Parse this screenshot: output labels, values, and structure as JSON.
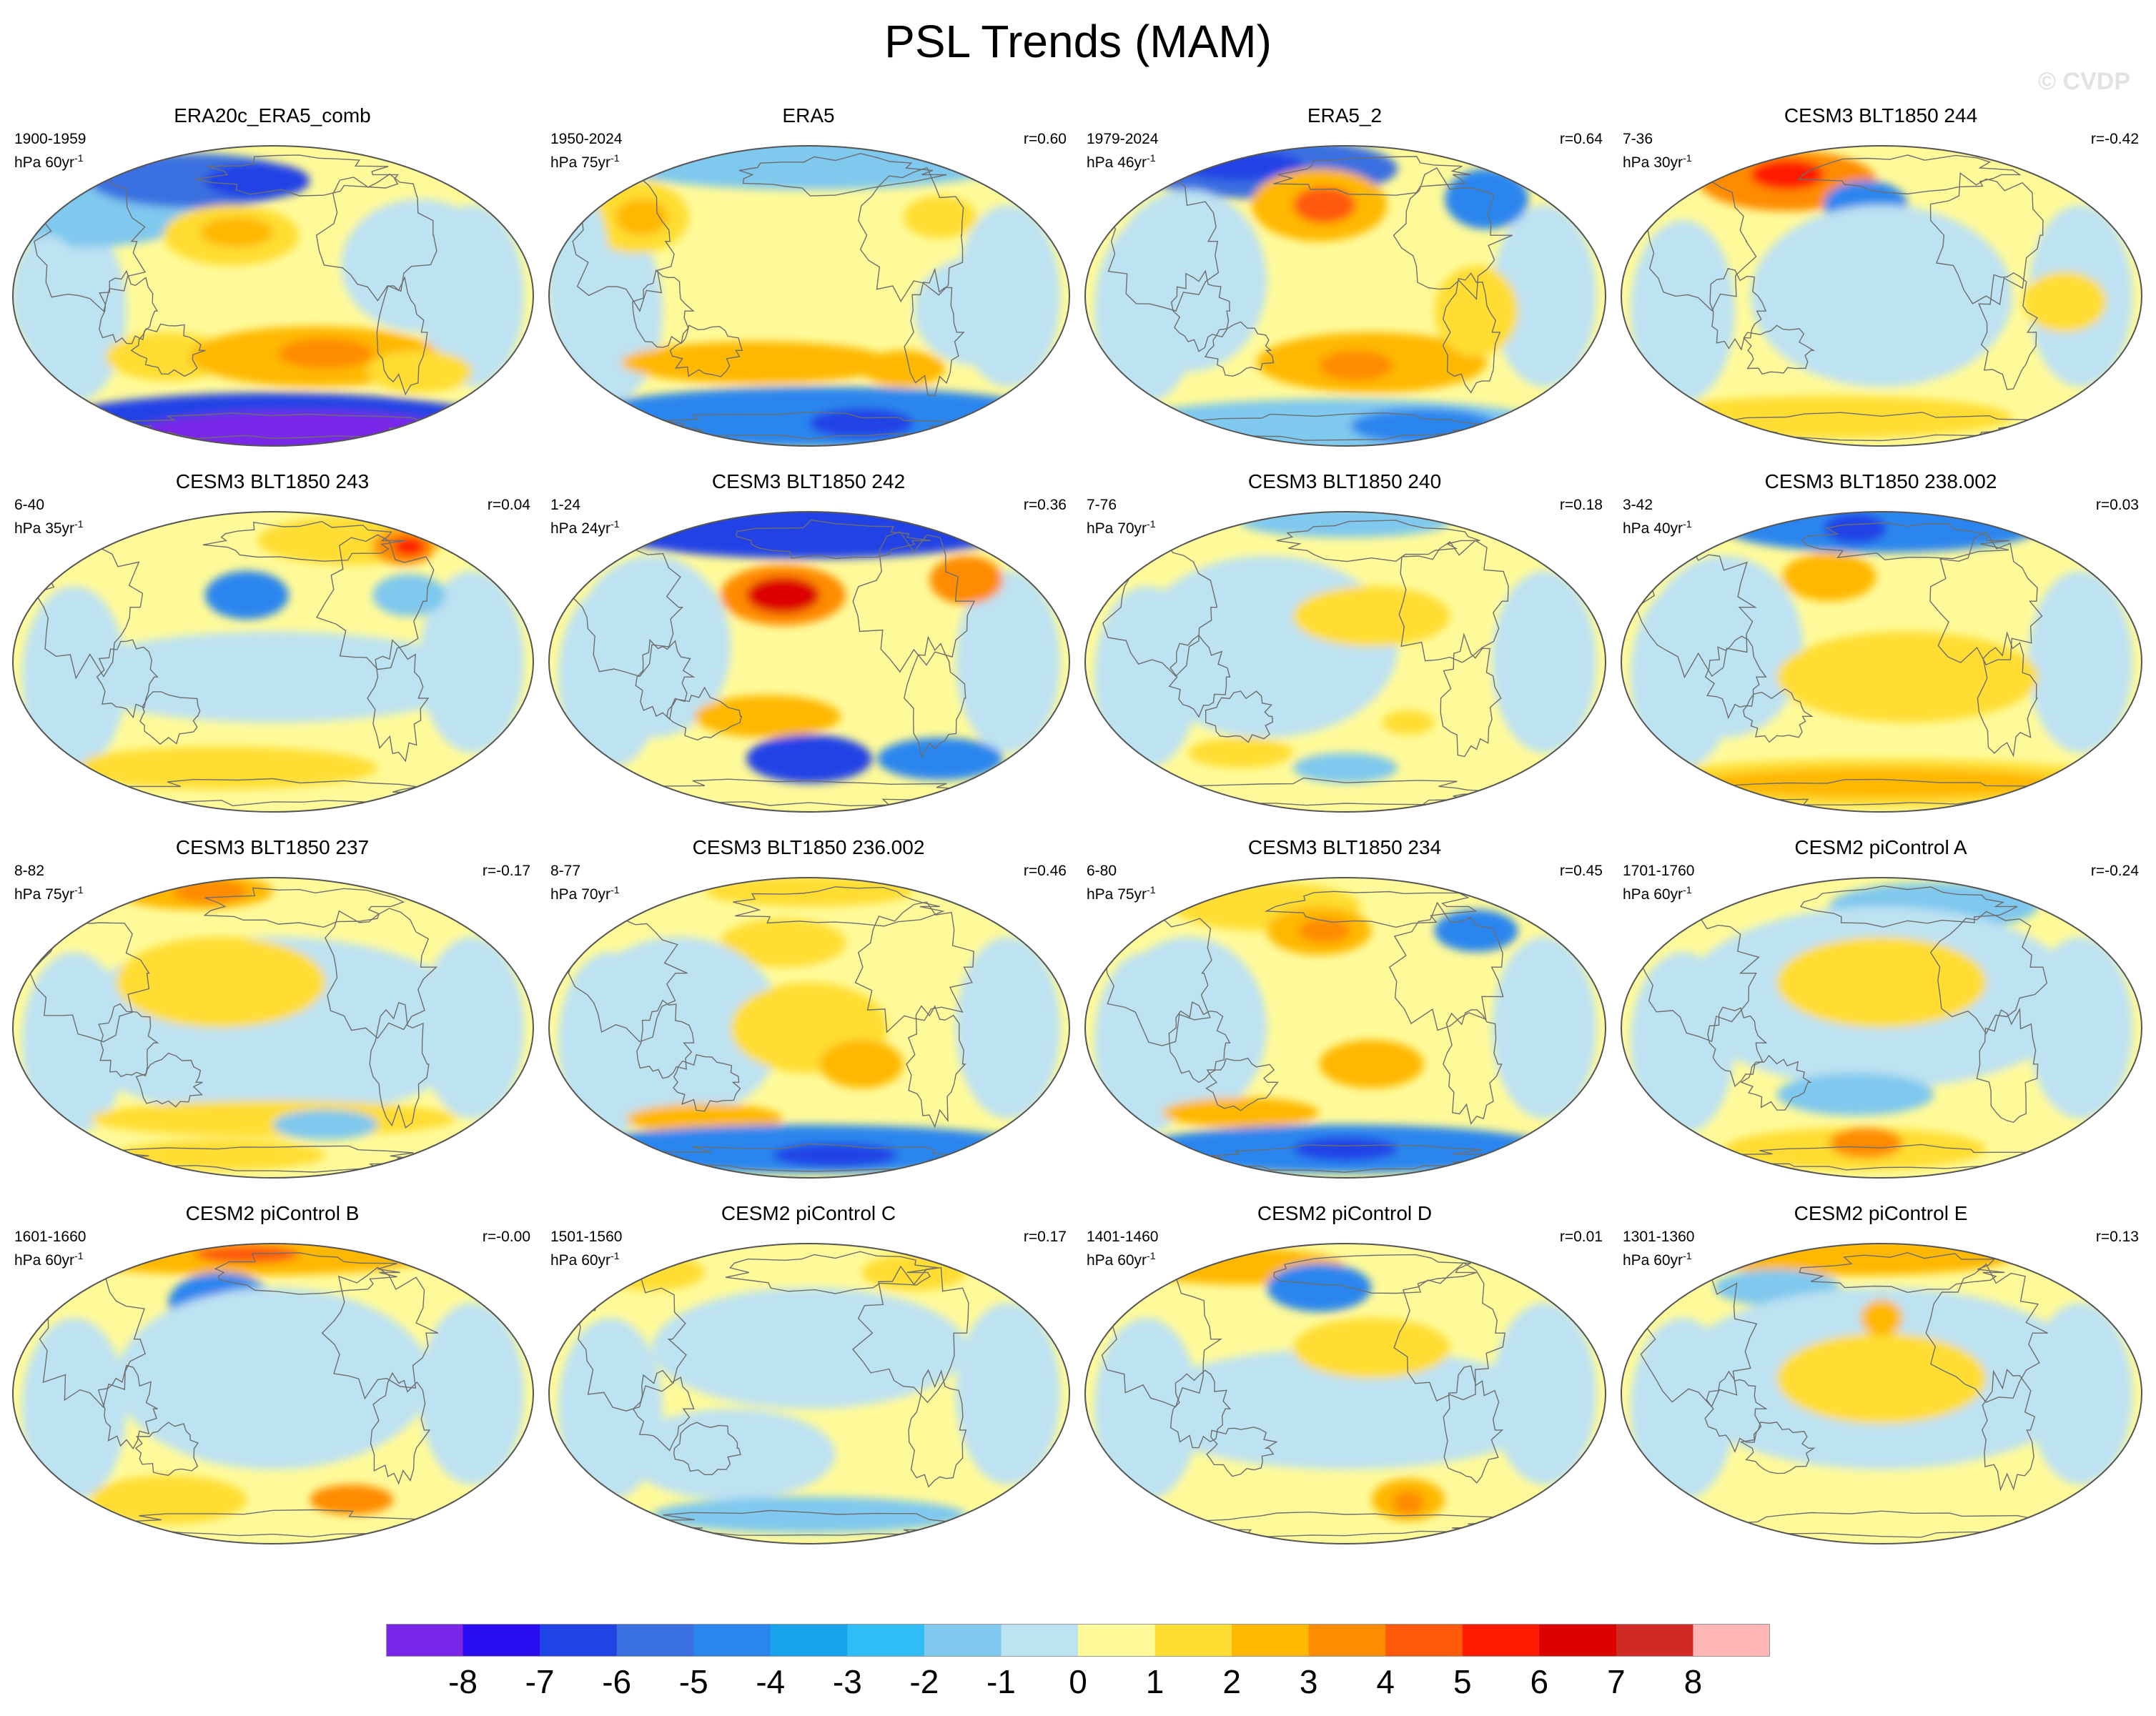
{
  "title": "PSL Trends (MAM)",
  "watermark": "© CVDP",
  "units_base": "hPa",
  "colorbar": {
    "labels": [
      "-8",
      "-7",
      "-6",
      "-5",
      "-4",
      "-3",
      "-2",
      "-1",
      "0",
      "1",
      "2",
      "3",
      "4",
      "5",
      "6",
      "7",
      "8"
    ],
    "colors": [
      "#7a25e8",
      "#2a0cf5",
      "#2043e6",
      "#3a6fe0",
      "#2a86ee",
      "#17a3ee",
      "#30bdf5",
      "#7fc8ee",
      "#bde2f2",
      "#fffa99",
      "#ffdd33",
      "#ffb800",
      "#ff8b00",
      "#ff5a0a",
      "#ff1c00",
      "#dc0000",
      "#d02a25",
      "#ffb6b6"
    ]
  },
  "panels": [
    {
      "title": "ERA20c_ERA5_comb",
      "period": "1900-1959",
      "units": "hPa 60yr",
      "unit_exp": "-1",
      "corr": "",
      "blobs": [
        [
          "#7fc8ee",
          0.14,
          0.16,
          0.26,
          0.18
        ],
        [
          "#3a6fe0",
          0.35,
          0.12,
          0.2,
          0.09
        ],
        [
          "#2043e6",
          0.47,
          0.12,
          0.1,
          0.06
        ],
        [
          "#ffdd33",
          0.42,
          0.3,
          0.13,
          0.1
        ],
        [
          "#ffb800",
          0.43,
          0.29,
          0.07,
          0.05
        ],
        [
          "#ffdd33",
          0.3,
          0.7,
          0.12,
          0.08
        ],
        [
          "#ffb800",
          0.58,
          0.7,
          0.24,
          0.1
        ],
        [
          "#ff8b00",
          0.6,
          0.69,
          0.09,
          0.05
        ],
        [
          "#ffdd33",
          0.78,
          0.75,
          0.1,
          0.07
        ],
        [
          "#bde2f2",
          0.78,
          0.4,
          0.15,
          0.22
        ],
        [
          "#bde2f2",
          0.07,
          0.5,
          0.07,
          0.2
        ],
        [
          "#2043e6",
          0.5,
          0.94,
          0.46,
          0.12
        ],
        [
          "#7a25e8",
          0.55,
          0.96,
          0.32,
          0.08
        ]
      ]
    },
    {
      "title": "ERA5",
      "period": "1950-2024",
      "units": "hPa 75yr",
      "unit_exp": "-1",
      "corr": "r=0.60",
      "blobs": [
        [
          "#7fc8ee",
          0.5,
          0.05,
          0.4,
          0.1
        ],
        [
          "#ffdd33",
          0.17,
          0.24,
          0.1,
          0.12
        ],
        [
          "#ffb800",
          0.18,
          0.24,
          0.05,
          0.06
        ],
        [
          "#ffdd33",
          0.75,
          0.24,
          0.07,
          0.07
        ],
        [
          "#bde2f2",
          0.06,
          0.45,
          0.06,
          0.3
        ],
        [
          "#ffb800",
          0.4,
          0.72,
          0.26,
          0.07
        ],
        [
          "#ffb800",
          0.68,
          0.74,
          0.08,
          0.06
        ],
        [
          "#bde2f2",
          0.82,
          0.55,
          0.12,
          0.18
        ],
        [
          "#2a86ee",
          0.52,
          0.9,
          0.46,
          0.1
        ],
        [
          "#2043e6",
          0.6,
          0.92,
          0.1,
          0.05
        ]
      ]
    },
    {
      "title": "ERA5_2",
      "period": "1979-2024",
      "units": "hPa 46yr",
      "unit_exp": "-1",
      "corr": "r=0.64",
      "blobs": [
        [
          "#3a6fe0",
          0.35,
          0.08,
          0.25,
          0.1
        ],
        [
          "#2043e6",
          0.3,
          0.07,
          0.12,
          0.05
        ],
        [
          "#ffb800",
          0.45,
          0.2,
          0.13,
          0.12
        ],
        [
          "#ff5a0a",
          0.46,
          0.2,
          0.06,
          0.06
        ],
        [
          "#2a86ee",
          0.77,
          0.18,
          0.08,
          0.1
        ],
        [
          "#bde2f2",
          0.2,
          0.45,
          0.15,
          0.3
        ],
        [
          "#ffb800",
          0.55,
          0.72,
          0.22,
          0.1
        ],
        [
          "#ff8b00",
          0.52,
          0.73,
          0.07,
          0.05
        ],
        [
          "#ffdd33",
          0.75,
          0.55,
          0.08,
          0.15
        ],
        [
          "#7fc8ee",
          0.48,
          0.93,
          0.42,
          0.09
        ],
        [
          "#2a86ee",
          0.65,
          0.93,
          0.14,
          0.06
        ]
      ]
    },
    {
      "title": "CESM3 BLT1850 244",
      "period": "7-36",
      "units": "hPa 30yr",
      "unit_exp": "-1",
      "corr": "r=-0.42",
      "blobs": [
        [
          "#ff8b00",
          0.32,
          0.12,
          0.17,
          0.1
        ],
        [
          "#ff1c00",
          0.32,
          0.1,
          0.07,
          0.05
        ],
        [
          "#2a86ee",
          0.47,
          0.2,
          0.08,
          0.08
        ],
        [
          "#bde2f2",
          0.5,
          0.5,
          0.25,
          0.3
        ],
        [
          "#ffdd33",
          0.85,
          0.52,
          0.08,
          0.1
        ],
        [
          "#ffdd33",
          0.4,
          0.9,
          0.35,
          0.07
        ]
      ]
    },
    {
      "title": "CESM3 BLT1850 243",
      "period": "6-40",
      "units": "hPa 35yr",
      "unit_exp": "-1",
      "corr": "r=0.04",
      "blobs": [
        [
          "#ffdd33",
          0.65,
          0.1,
          0.18,
          0.08
        ],
        [
          "#ff8b00",
          0.75,
          0.12,
          0.06,
          0.06
        ],
        [
          "#ff1c00",
          0.76,
          0.12,
          0.03,
          0.03
        ],
        [
          "#2a86ee",
          0.45,
          0.28,
          0.08,
          0.08
        ],
        [
          "#7fc8ee",
          0.76,
          0.28,
          0.07,
          0.07
        ],
        [
          "#bde2f2",
          0.5,
          0.55,
          0.4,
          0.15
        ],
        [
          "#ffdd33",
          0.4,
          0.85,
          0.3,
          0.07
        ],
        [
          "#bde2f2",
          0.1,
          0.7,
          0.08,
          0.15
        ]
      ]
    },
    {
      "title": "CESM3 BLT1850 242",
      "period": "1-24",
      "units": "hPa 24yr",
      "unit_exp": "-1",
      "corr": "r=0.36",
      "blobs": [
        [
          "#2043e6",
          0.5,
          0.06,
          0.4,
          0.1
        ],
        [
          "#ff8b00",
          0.45,
          0.28,
          0.12,
          0.1
        ],
        [
          "#dc0000",
          0.45,
          0.28,
          0.07,
          0.06
        ],
        [
          "#ff8b00",
          0.8,
          0.23,
          0.07,
          0.08
        ],
        [
          "#bde2f2",
          0.2,
          0.45,
          0.15,
          0.3
        ],
        [
          "#ffb800",
          0.42,
          0.68,
          0.14,
          0.07
        ],
        [
          "#2043e6",
          0.5,
          0.82,
          0.12,
          0.08
        ],
        [
          "#2a86ee",
          0.75,
          0.82,
          0.12,
          0.07
        ]
      ]
    },
    {
      "title": "CESM3 BLT1850 240",
      "period": "7-76",
      "units": "hPa 70yr",
      "unit_exp": "-1",
      "corr": "r=0.18",
      "blobs": [
        [
          "#7fc8ee",
          0.5,
          0.04,
          0.2,
          0.05
        ],
        [
          "#bde2f2",
          0.35,
          0.45,
          0.25,
          0.3
        ],
        [
          "#ffdd33",
          0.55,
          0.35,
          0.15,
          0.1
        ],
        [
          "#ffdd33",
          0.3,
          0.8,
          0.1,
          0.05
        ],
        [
          "#7fc8ee",
          0.5,
          0.85,
          0.1,
          0.05
        ],
        [
          "#ffdd33",
          0.62,
          0.7,
          0.05,
          0.04
        ]
      ]
    },
    {
      "title": "CESM3 BLT1850 238.002",
      "period": "3-42",
      "units": "hPa 40yr",
      "unit_exp": "-1",
      "corr": "r=0.03",
      "blobs": [
        [
          "#2a86ee",
          0.5,
          0.06,
          0.3,
          0.08
        ],
        [
          "#2043e6",
          0.45,
          0.06,
          0.06,
          0.05
        ],
        [
          "#ffb800",
          0.4,
          0.22,
          0.09,
          0.08
        ],
        [
          "#bde2f2",
          0.2,
          0.45,
          0.15,
          0.3
        ],
        [
          "#ffdd33",
          0.55,
          0.55,
          0.25,
          0.15
        ],
        [
          "#ffdd33",
          0.5,
          0.9,
          0.48,
          0.08
        ],
        [
          "#ffb800",
          0.5,
          0.9,
          0.35,
          0.05
        ]
      ]
    },
    {
      "title": "CESM3 BLT1850 237",
      "period": "8-82",
      "units": "hPa 75yr",
      "unit_exp": "-1",
      "corr": "r=-0.17",
      "blobs": [
        [
          "#ffb800",
          0.35,
          0.05,
          0.15,
          0.06
        ],
        [
          "#ff8b00",
          0.38,
          0.05,
          0.07,
          0.04
        ],
        [
          "#bde2f2",
          0.5,
          0.5,
          0.4,
          0.3
        ],
        [
          "#ffdd33",
          0.4,
          0.35,
          0.2,
          0.15
        ],
        [
          "#ffdd33",
          0.5,
          0.8,
          0.35,
          0.06
        ],
        [
          "#7fc8ee",
          0.6,
          0.82,
          0.1,
          0.05
        ],
        [
          "#ffdd33",
          0.4,
          0.92,
          0.2,
          0.05
        ]
      ]
    },
    {
      "title": "CESM3 BLT1850 236.002",
      "period": "8-77",
      "units": "hPa 70yr",
      "unit_exp": "-1",
      "corr": "r=0.46",
      "blobs": [
        [
          "#ffdd33",
          0.5,
          0.05,
          0.2,
          0.05
        ],
        [
          "#ffdd33",
          0.45,
          0.22,
          0.12,
          0.08
        ],
        [
          "#bde2f2",
          0.25,
          0.5,
          0.2,
          0.3
        ],
        [
          "#ffdd33",
          0.5,
          0.5,
          0.15,
          0.15
        ],
        [
          "#ffb800",
          0.6,
          0.62,
          0.08,
          0.08
        ],
        [
          "#ffb800",
          0.3,
          0.8,
          0.15,
          0.05
        ],
        [
          "#2a86ee",
          0.5,
          0.9,
          0.45,
          0.08
        ],
        [
          "#2043e6",
          0.55,
          0.92,
          0.12,
          0.04
        ]
      ]
    },
    {
      "title": "CESM3 BLT1850 234",
      "period": "6-80",
      "units": "hPa 75yr",
      "unit_exp": "-1",
      "corr": "r=0.45",
      "blobs": [
        [
          "#ffdd33",
          0.35,
          0.1,
          0.18,
          0.08
        ],
        [
          "#ffb800",
          0.45,
          0.18,
          0.1,
          0.08
        ],
        [
          "#ff8b00",
          0.46,
          0.18,
          0.05,
          0.04
        ],
        [
          "#2a86ee",
          0.75,
          0.18,
          0.08,
          0.07
        ],
        [
          "#bde2f2",
          0.2,
          0.5,
          0.15,
          0.3
        ],
        [
          "#ffb800",
          0.55,
          0.62,
          0.1,
          0.08
        ],
        [
          "#ffb800",
          0.3,
          0.78,
          0.15,
          0.05
        ],
        [
          "#2a86ee",
          0.5,
          0.9,
          0.4,
          0.08
        ],
        [
          "#2043e6",
          0.5,
          0.9,
          0.1,
          0.04
        ]
      ]
    },
    {
      "title": "CESM2 piControl A",
      "period": "1701-1760",
      "units": "hPa 60yr",
      "unit_exp": "-1",
      "corr": "r=-0.24",
      "blobs": [
        [
          "#7fc8ee",
          0.6,
          0.1,
          0.2,
          0.08
        ],
        [
          "#bde2f2",
          0.5,
          0.4,
          0.38,
          0.3
        ],
        [
          "#ffdd33",
          0.5,
          0.35,
          0.2,
          0.15
        ],
        [
          "#7fc8ee",
          0.45,
          0.72,
          0.15,
          0.07
        ],
        [
          "#ffdd33",
          0.45,
          0.9,
          0.25,
          0.07
        ],
        [
          "#ff8b00",
          0.47,
          0.88,
          0.07,
          0.05
        ]
      ]
    },
    {
      "title": "CESM2 piControl B",
      "period": "1601-1660",
      "units": "hPa 60yr",
      "unit_exp": "-1",
      "corr": "r=-0.00",
      "blobs": [
        [
          "#ffb800",
          0.45,
          0.05,
          0.35,
          0.06
        ],
        [
          "#ff5a0a",
          0.45,
          0.04,
          0.1,
          0.03
        ],
        [
          "#2a86ee",
          0.4,
          0.2,
          0.1,
          0.1
        ],
        [
          "#2043e6",
          0.4,
          0.2,
          0.04,
          0.04
        ],
        [
          "#bde2f2",
          0.5,
          0.45,
          0.3,
          0.3
        ],
        [
          "#ffdd33",
          0.3,
          0.85,
          0.15,
          0.08
        ],
        [
          "#ff8b00",
          0.65,
          0.85,
          0.08,
          0.05
        ]
      ]
    },
    {
      "title": "CESM2 piControl C",
      "period": "1501-1560",
      "units": "hPa 60yr",
      "unit_exp": "-1",
      "corr": "r=0.17",
      "blobs": [
        [
          "#ffdd33",
          0.2,
          0.1,
          0.1,
          0.06
        ],
        [
          "#ffdd33",
          0.7,
          0.1,
          0.1,
          0.06
        ],
        [
          "#bde2f2",
          0.5,
          0.35,
          0.3,
          0.2
        ],
        [
          "#bde2f2",
          0.35,
          0.7,
          0.2,
          0.15
        ],
        [
          "#7fc8ee",
          0.5,
          0.9,
          0.3,
          0.06
        ]
      ]
    },
    {
      "title": "CESM2 piControl D",
      "period": "1401-1460",
      "units": "hPa 60yr",
      "unit_exp": "-1",
      "corr": "r=0.01",
      "blobs": [
        [
          "#ffb800",
          0.3,
          0.08,
          0.2,
          0.06
        ],
        [
          "#2a86ee",
          0.45,
          0.15,
          0.1,
          0.08
        ],
        [
          "#bde2f2",
          0.5,
          0.55,
          0.4,
          0.2
        ],
        [
          "#ffdd33",
          0.55,
          0.35,
          0.15,
          0.1
        ],
        [
          "#ffb800",
          0.62,
          0.85,
          0.07,
          0.07
        ],
        [
          "#ff8b00",
          0.62,
          0.86,
          0.03,
          0.04
        ]
      ]
    },
    {
      "title": "CESM2 piControl E",
      "period": "1301-1360",
      "units": "hPa 60yr",
      "unit_exp": "-1",
      "corr": "r=0.13",
      "blobs": [
        [
          "#ffb800",
          0.45,
          0.05,
          0.3,
          0.06
        ],
        [
          "#7fc8ee",
          0.3,
          0.15,
          0.12,
          0.06
        ],
        [
          "#bde2f2",
          0.5,
          0.45,
          0.4,
          0.3
        ],
        [
          "#ffdd33",
          0.5,
          0.45,
          0.2,
          0.15
        ],
        [
          "#ffb800",
          0.5,
          0.25,
          0.04,
          0.06
        ]
      ]
    }
  ]
}
